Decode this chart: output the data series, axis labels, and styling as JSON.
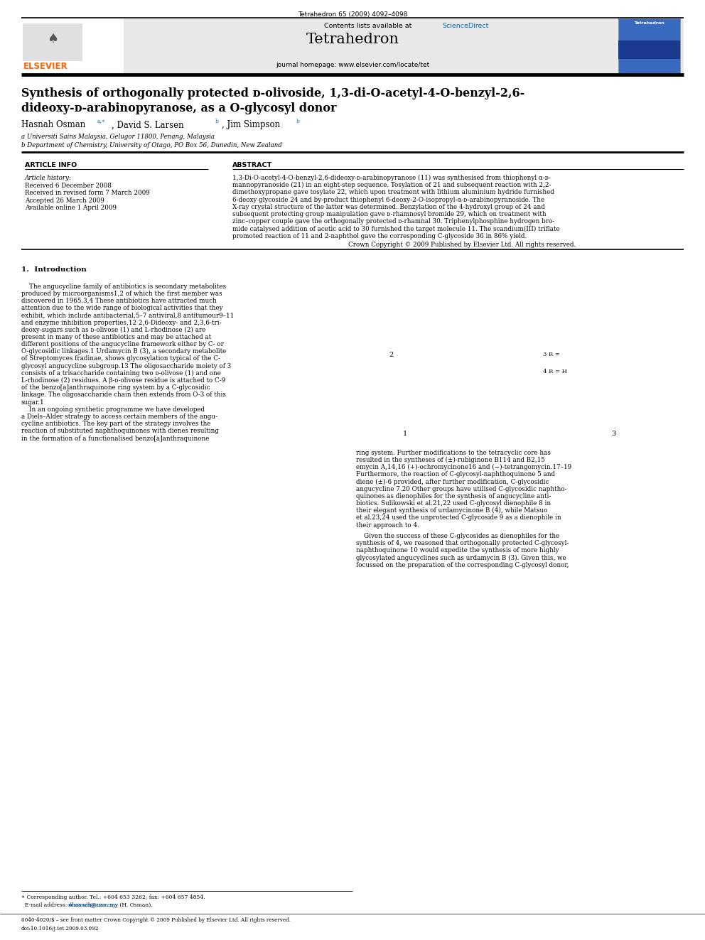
{
  "page_width": 9.92,
  "page_height": 13.23,
  "bg_color": "#ffffff",
  "top_journal_line": "Tetrahedron 65 (2009) 4092–4098",
  "journal_name": "Tetrahedron",
  "journal_homepage": "journal homepage: www.elsevier.com/locate/tet",
  "contents_line": "Contents lists available at ScienceDirect",
  "sciencedirect_color": "#0070c0",
  "header_bg": "#e8e8e8",
  "title_line1": "Synthesis of orthogonally protected ᴅ-olivoside, 1,3-di-Ο-acetyl-4-Ο-benzyl-2,6-",
  "title_line2": "dideoxy-ᴅ-arabinopyranose, as a Ο-glycosyl donor",
  "authors": "Hasnah Osman",
  "author_rest": ", David S. Larsen",
  "author_rest2": ", Jim Simpson",
  "affil1": "a Universiti Sains Malaysia, Gelugor 11800, Penang, Malaysia",
  "affil2": "b Department of Chemistry, University of Otago, PO Box 56, Dunedin, New Zealand",
  "article_info_header": "ARTICLE INFO",
  "abstract_header": "ABSTRACT",
  "article_history_label": "Article history:",
  "received1": "Received 6 December 2008",
  "received2": "Received in revised form 7 March 2009",
  "accepted": "Accepted 26 March 2009",
  "available": "Available online 1 April 2009",
  "copyright_line": "Crown Copyright © 2009 Published by Elsevier Ltd. All rights reserved.",
  "intro_header": "1.  Introduction",
  "footer_left": "0040-4020/$ – see front matter Crown Copyright © 2009 Published by Elsevier Ltd. All rights reserved.",
  "footer_doi": "doi:10.1016/j.tet.2009.03.092",
  "corr_footnote": "Corresponding author. Tel.: +604 653 3262; fax: +604 657 4854.",
  "email_footnote": "E-mail address: ohasnah@usm.my (H. Osman).",
  "elsevier_color": "#FF6200",
  "link_color": "#0070c0",
  "abstract_lines": [
    "1,3-Di-O-acetyl-4-O-benzyl-2,6-dideoxy-ᴅ-arabinopyranose (11) was synthesised from thiophenyl α-ᴅ-",
    "mannopyranoside (21) in an eight-step sequence. Tosylation of 21 and subsequent reaction with 2,2-",
    "dimethoxypropane gave tosylate 22, which upon treatment with lithium aluminium hydride furnished",
    "6-deoxy glycoside 24 and by-product thiophenyl 6-deoxy-2-O-isopropyl-α-ᴅ-arabinopyranoside. The",
    "X-ray crystal structure of the latter was determined. Benzylation of the 4-hydroxyl group of 24 and",
    "subsequent protecting group manipulation gave ᴅ-rhamnosyl bromide 29, which on treatment with",
    "zinc–copper couple gave the orthogonally protected ᴅ-rhamnal 30. Triphenylphosphine hydrogen bro-",
    "mide catalysed addition of acetic acid to 30 furnished the target molecule 11. The scandium(III) triflate",
    "promoted reaction of 11 and 2-naphthol gave the corresponding C-glycoside 36 in 86% yield."
  ],
  "intro_left_lines": [
    "    The angucycline family of antibiotics is secondary metabolites",
    "produced by microorganisms1,2 of which the first member was",
    "discovered in 1965.3,4 These antibiotics have attracted much",
    "attention due to the wide range of biological activities that they",
    "exhibit, which include antibacterial,5–7 antiviral,8 antitumour9–11",
    "and enzyme inhibition properties,12 2,6-Dideoxy- and 2,3,6-tri-",
    "deoxy-sugars such as ᴅ-olivose (1) and L-rhodinose (2) are",
    "present in many of these antibiotics and may be attached at",
    "different positions of the angucycline framework either by C- or",
    "O-glycosidic linkages.1 Urdamycin B (3), a secondary metabolite",
    "of Streptomyces fradinae, shows glycosylation typical of the C-",
    "glycosyl angucycline subgroup.13 The oligosaccharide moiety of 3",
    "consists of a trisaccharide containing two ᴅ-olivose (1) and one",
    "L-rhodinose (2) residues. A β-ᴅ-olivose residue is attached to C-9",
    "of the benzo[a]anthraquinone ring system by a C-glycosidic",
    "linkage. The oligosaccharide chain then extends from O-3 of this",
    "sugar.1",
    "    In an ongoing synthetic programme we have developed",
    "a Diels–Alder strategy to access certain members of the angu-",
    "cycline antibiotics. The key part of the strategy involves the",
    "reaction of substituted naphthoquinones with dienes resulting",
    "in the formation of a functionalised benzo[a]anthraquinone"
  ],
  "intro_right_lines": [
    "ring system. Further modifications to the tetracyclic core has",
    "resulted in the syntheses of (±)-rubiginone B114 and B2,15",
    "emycin A,14,16 (+)-ochromycinone16 and (−)-tetrangomycin.17–19",
    "Furthermore, the reaction of C-glycosyl-naphthoquinone 5 and",
    "diene (±)-6 provided, after further modification, C-glycosidic",
    "angucycline 7.20 Other groups have utilised C-glycosidic naphtho-",
    "quinones as dienophiles for the synthesis of angucycline anti-",
    "biotics. Sulikowski et al.21,22 used C-glycosyl dienophile 8 in",
    "their elegant synthesis of urdamycinone B (4), while Matsuo",
    "et al.23,24 used the unprotected C-glycoside 9 as a dienophile in",
    "their approach to 4.",
    "",
    "    Given the success of these C-glycosides as dienophiles for the",
    "synthesis of 4, we reasoned that orthogonally protected C-glycosyl-",
    "naphthoquinone 10 would expedite the synthesis of more highly",
    "glycosylated angucyclines such as urdamycin B (3). Given this, we",
    "focussed on the preparation of the corresponding C-glycosyl donor,"
  ]
}
